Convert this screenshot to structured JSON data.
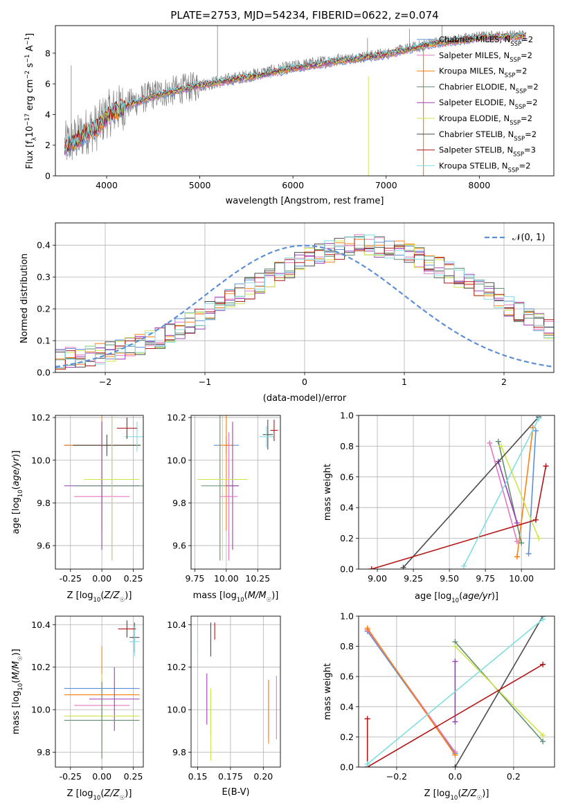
{
  "figure": {
    "title": "PLATE=2753, MJD=54234, FIBERID=0622, z=0.074"
  },
  "colors": {
    "Chabrier MILES": "#5b8fd6",
    "Salpeter MILES": "#e377c2",
    "Kroupa MILES": "#ff7f0e",
    "Chabrier ELODIE": "#5f8f6f",
    "Salpeter ELODIE": "#9a3fb5",
    "Kroupa ELODIE": "#cfe64a",
    "Chabrier STELIB": "#4a4a4a",
    "Salpeter STELIB": "#b21515",
    "Kroupa STELIB": "#80dde0",
    "data": "#808080",
    "grid": "#b0b0b0",
    "normal": "#5b8fd6"
  },
  "legend": [
    {
      "key": "Chabrier MILES",
      "label": "Chabrier MILES, N",
      "sub": "SSP",
      "suffix": "=2"
    },
    {
      "key": "Salpeter MILES",
      "label": "Salpeter MILES, N",
      "sub": "SSP",
      "suffix": "=2"
    },
    {
      "key": "Kroupa MILES",
      "label": "Kroupa MILES, N",
      "sub": "SSP",
      "suffix": "=2"
    },
    {
      "key": "Chabrier ELODIE",
      "label": "Chabrier ELODIE, N",
      "sub": "SSP",
      "suffix": "=2"
    },
    {
      "key": "Salpeter ELODIE",
      "label": "Salpeter ELODIE, N",
      "sub": "SSP",
      "suffix": "=2"
    },
    {
      "key": "Kroupa ELODIE",
      "label": "Kroupa ELODIE, N",
      "sub": "SSP",
      "suffix": "=2"
    },
    {
      "key": "Chabrier STELIB",
      "label": "Chabrier STELIB, N",
      "sub": "SSP",
      "suffix": "=2"
    },
    {
      "key": "Salpeter STELIB",
      "label": "Salpeter STELIB, N",
      "sub": "SSP",
      "suffix": "=3"
    },
    {
      "key": "Kroupa STELIB",
      "label": "Kroupa STELIB, N",
      "sub": "SSP",
      "suffix": "=2"
    }
  ],
  "chart_data": [
    {
      "type": "line",
      "panel": "spectrum",
      "xlabel": "wavelength [Angstrom, rest frame]",
      "ylabel": "Flux [f_λ 10^-17 erg cm^-2 s^-1 A^-1]",
      "xlim": [
        3450,
        8800
      ],
      "ylim": [
        0,
        9.8
      ],
      "xticks": [
        4000,
        5000,
        6000,
        7000,
        8000
      ],
      "yticks": [
        0,
        2,
        4,
        6,
        8
      ],
      "grid": false,
      "legend_position": "right",
      "data_continuum": {
        "x": [
          3550,
          3700,
          3800,
          3900,
          4000,
          4200,
          4500,
          5000,
          5500,
          6000,
          6500,
          7000,
          7500,
          8000,
          8500
        ],
        "y": [
          2.0,
          2.5,
          3.0,
          3.2,
          4.0,
          4.6,
          5.3,
          5.9,
          6.5,
          7.1,
          7.6,
          8.0,
          8.7,
          9.1,
          9.2
        ]
      },
      "model_mean": {
        "x": [
          3550,
          3700,
          3800,
          3900,
          4000,
          4200,
          4500,
          5000,
          5500,
          6000,
          6500,
          7000,
          7500,
          8000,
          8500
        ],
        "y": [
          1.9,
          2.4,
          2.9,
          3.1,
          3.9,
          4.5,
          5.2,
          5.9,
          6.4,
          7.0,
          7.5,
          7.9,
          8.6,
          9.0,
          9.1
        ]
      }
    },
    {
      "type": "histogram",
      "panel": "residuals",
      "xlabel": "(data-model)/error",
      "ylabel": "Normed distribution",
      "xlim": [
        -2.5,
        2.5
      ],
      "ylim": [
        0,
        0.47
      ],
      "xticks": [
        -2,
        -1,
        0,
        1,
        2
      ],
      "yticks": [
        0.0,
        0.1,
        0.2,
        0.3,
        0.4
      ],
      "grid": true,
      "legend": "𝒩(0, 1)",
      "legend_position": "top-right",
      "bin_width": 0.1,
      "envelope": [
        0.04,
        0.045,
        0.05,
        0.055,
        0.06,
        0.07,
        0.075,
        0.08,
        0.09,
        0.1,
        0.11,
        0.12,
        0.14,
        0.155,
        0.17,
        0.19,
        0.21,
        0.23,
        0.25,
        0.265,
        0.28,
        0.3,
        0.315,
        0.33,
        0.345,
        0.36,
        0.37,
        0.38,
        0.39,
        0.395,
        0.4,
        0.4,
        0.395,
        0.39,
        0.38,
        0.37,
        0.36,
        0.345,
        0.33,
        0.315,
        0.3,
        0.28,
        0.265,
        0.25,
        0.23,
        0.21,
        0.19,
        0.17,
        0.155,
        0.14
      ]
    },
    {
      "type": "scatter",
      "panel": "age-vs-Z",
      "xlabel": "Z [log10(Z/Z☉)]",
      "ylabel": "age [log10(age/yr)]",
      "xlim": [
        -0.37,
        0.33
      ],
      "ylim": [
        9.49,
        10.21
      ],
      "xticks": [
        -0.25,
        0.0,
        0.25
      ],
      "yticks": [
        9.6,
        9.8,
        10.0,
        10.2
      ],
      "grid": true,
      "points": [
        {
          "key": "Chabrier MILES",
          "x": 0.0,
          "y": 10.07,
          "xerr": 0.3,
          "yerr": 0.04
        },
        {
          "key": "Kroupa MILES",
          "x": 0.0,
          "y": 10.07,
          "xerr": 0.3,
          "yerr": 0.4
        },
        {
          "key": "Chabrier STELIB",
          "x": 0.04,
          "y": 10.07,
          "xerr": 0.27,
          "yerr": 0.05
        },
        {
          "key": "Salpeter MILES",
          "x": 0.0,
          "y": 9.83,
          "xerr": 0.22,
          "yerr": 0.04
        },
        {
          "key": "Salpeter ELODIE",
          "x": 0.0,
          "y": 9.88,
          "xerr": 0.3,
          "yerr": 0.3
        },
        {
          "key": "Chabrier ELODIE",
          "x": 0.08,
          "y": 9.88,
          "xerr": 0.3,
          "yerr": 0.35
        },
        {
          "key": "Kroupa ELODIE",
          "x": 0.08,
          "y": 9.91,
          "xerr": 0.22,
          "yerr": 0.38
        },
        {
          "key": "Kroupa STELIB",
          "x": 0.28,
          "y": 10.11,
          "xerr": 0.1,
          "yerr": 0.07
        },
        {
          "key": "Salpeter STELIB",
          "x": 0.2,
          "y": 10.15,
          "xerr": 0.08,
          "yerr": 0.05
        }
      ]
    },
    {
      "type": "scatter",
      "panel": "age-vs-mass",
      "xlabel": "mass [log10(M/M☉)]",
      "ylabel": "",
      "xlim": [
        9.72,
        10.43
      ],
      "ylim": [
        9.49,
        10.21
      ],
      "xticks": [
        9.75,
        10.0,
        10.25
      ],
      "yticks": [
        9.6,
        9.8,
        10.0,
        10.2
      ],
      "grid": true,
      "points": [
        {
          "key": "Chabrier MILES",
          "x": 10.0,
          "y": 10.07,
          "xerr": 0.1,
          "yerr": 0.04
        },
        {
          "key": "Kroupa MILES",
          "x": 10.0,
          "y": 10.07,
          "xerr": 0.05,
          "yerr": 0.4
        },
        {
          "key": "Chabrier ELODIE",
          "x": 9.95,
          "y": 9.88,
          "xerr": 0.15,
          "yerr": 0.35
        },
        {
          "key": "Salpeter ELODIE",
          "x": 10.05,
          "y": 9.88,
          "xerr": 0.05,
          "yerr": 0.3
        },
        {
          "key": "Salpeter MILES",
          "x": 10.02,
          "y": 9.83,
          "xerr": 0.07,
          "yerr": 0.3
        },
        {
          "key": "Kroupa ELODIE",
          "x": 9.97,
          "y": 9.91,
          "xerr": 0.2,
          "yerr": 0.38
        },
        {
          "key": "Chabrier STELIB",
          "x": 10.33,
          "y": 10.12,
          "xerr": 0.04,
          "yerr": 0.07
        },
        {
          "key": "Kroupa STELIB",
          "x": 10.32,
          "y": 10.11,
          "xerr": 0.06,
          "yerr": 0.05
        },
        {
          "key": "Salpeter STELIB",
          "x": 10.38,
          "y": 10.14,
          "xerr": 0.03,
          "yerr": 0.05
        }
      ]
    },
    {
      "type": "line",
      "panel": "mass-weight-vs-age",
      "xlabel": "age [log10(age/yr)]",
      "ylabel": "mass weight",
      "xlim": [
        8.87,
        10.23
      ],
      "ylim": [
        0,
        1
      ],
      "xticks": [
        9.0,
        9.25,
        9.5,
        9.75,
        10.0
      ],
      "yticks": [
        0.0,
        0.2,
        0.4,
        0.6,
        0.8,
        1.0
      ],
      "grid": true,
      "series": [
        {
          "key": "Chabrier MILES",
          "x": [
            10.05,
            10.1
          ],
          "y": [
            0.1,
            0.9
          ]
        },
        {
          "key": "Salpeter MILES",
          "x": [
            9.78,
            9.97
          ],
          "y": [
            0.82,
            0.18
          ]
        },
        {
          "key": "Kroupa MILES",
          "x": [
            9.97,
            10.08
          ],
          "y": [
            0.08,
            0.92
          ]
        },
        {
          "key": "Chabrier ELODIE",
          "x": [
            9.84,
            10.0
          ],
          "y": [
            0.83,
            0.17
          ]
        },
        {
          "key": "Salpeter ELODIE",
          "x": [
            9.84,
            9.97
          ],
          "y": [
            0.7,
            0.3
          ]
        },
        {
          "key": "Kroupa ELODIE",
          "x": [
            9.86,
            10.12
          ],
          "y": [
            0.8,
            0.2
          ]
        },
        {
          "key": "Chabrier STELIB",
          "x": [
            9.18,
            10.12
          ],
          "y": [
            0.01,
            0.99
          ]
        },
        {
          "key": "Salpeter STELIB",
          "x": [
            8.96,
            10.1,
            10.17
          ],
          "y": [
            0.0,
            0.32,
            0.67
          ]
        },
        {
          "key": "Kroupa STELIB",
          "x": [
            9.6,
            10.12
          ],
          "y": [
            0.02,
            0.98
          ]
        }
      ]
    },
    {
      "type": "scatter",
      "panel": "mass-vs-Z",
      "xlabel": "Z [log10(Z/Z☉)]",
      "ylabel": "mass [log10(M/M☉)]",
      "xlim": [
        -0.37,
        0.33
      ],
      "ylim": [
        9.73,
        10.44
      ],
      "xticks": [
        -0.25,
        0.0,
        0.25
      ],
      "yticks": [
        9.8,
        10.0,
        10.2,
        10.4
      ],
      "grid": true,
      "points": [
        {
          "key": "Chabrier MILES",
          "x": 0.0,
          "y": 10.1,
          "xerr": 0.3,
          "yerr": 0.05
        },
        {
          "key": "Kroupa MILES",
          "x": 0.0,
          "y": 10.07,
          "xerr": 0.3,
          "yerr": 0.23
        },
        {
          "key": "Salpeter MILES",
          "x": 0.0,
          "y": 10.02,
          "xerr": 0.22,
          "yerr": 0.05
        },
        {
          "key": "Salpeter ELODIE",
          "x": 0.1,
          "y": 10.05,
          "xerr": 0.2,
          "yerr": 0.15
        },
        {
          "key": "Kroupa ELODIE",
          "x": 0.0,
          "y": 9.97,
          "xerr": 0.3,
          "yerr": 0.2
        },
        {
          "key": "Chabrier ELODIE",
          "x": 0.0,
          "y": 9.95,
          "xerr": 0.3,
          "yerr": 0.18
        },
        {
          "key": "Chabrier STELIB",
          "x": 0.26,
          "y": 10.34,
          "xerr": 0.04,
          "yerr": 0.07
        },
        {
          "key": "Kroupa STELIB",
          "x": 0.26,
          "y": 10.32,
          "xerr": 0.04,
          "yerr": 0.07
        },
        {
          "key": "Salpeter STELIB",
          "x": 0.2,
          "y": 10.38,
          "xerr": 0.07,
          "yerr": 0.04
        }
      ]
    },
    {
      "type": "scatter",
      "panel": "mass-vs-EBV",
      "xlabel": "E(B-V)",
      "ylabel": "",
      "xlim": [
        0.145,
        0.213
      ],
      "ylim": [
        9.73,
        10.44
      ],
      "xticks": [
        0.15,
        0.175,
        0.2
      ],
      "yticks": [
        9.8,
        10.0,
        10.2,
        10.4
      ],
      "grid": true,
      "points": [
        {
          "key": "Kroupa STELIB",
          "x": 0.15,
          "y": 10.32,
          "xerr": 0.0,
          "yerr": 0.07
        },
        {
          "key": "Salpeter ELODIE",
          "x": 0.157,
          "y": 10.05,
          "xerr": 0.0,
          "yerr": 0.12
        },
        {
          "key": "Chabrier ELODIE",
          "x": 0.16,
          "y": 9.98,
          "xerr": 0.0,
          "yerr": 0.1
        },
        {
          "key": "Kroupa ELODIE",
          "x": 0.16,
          "y": 9.93,
          "xerr": 0.0,
          "yerr": 0.17
        },
        {
          "key": "Chabrier STELIB",
          "x": 0.16,
          "y": 10.33,
          "xerr": 0.0,
          "yerr": 0.08
        },
        {
          "key": "Salpeter STELIB",
          "x": 0.163,
          "y": 10.37,
          "xerr": 0.0,
          "yerr": 0.04
        },
        {
          "key": "Chabrier MILES",
          "x": 0.204,
          "y": 10.0,
          "xerr": 0.0,
          "yerr": 0.14
        },
        {
          "key": "Kroupa MILES",
          "x": 0.204,
          "y": 9.99,
          "xerr": 0.0,
          "yerr": 0.15
        },
        {
          "key": "Salpeter MILES",
          "x": 0.21,
          "y": 10.01,
          "xerr": 0.0,
          "yerr": 0.15
        }
      ]
    },
    {
      "type": "line",
      "panel": "mass-weight-vs-Z",
      "xlabel": "Z [log10(Z/Z☉)]",
      "ylabel": "mass weight",
      "xlim": [
        -0.33,
        0.34
      ],
      "ylim": [
        0,
        1
      ],
      "xticks": [
        -0.2,
        0.0,
        0.2
      ],
      "yticks": [
        0.0,
        0.2,
        0.4,
        0.6,
        0.8,
        1.0
      ],
      "grid": true,
      "series": [
        {
          "key": "Chabrier MILES",
          "x": [
            -0.3,
            0.0
          ],
          "y": [
            0.9,
            0.09
          ]
        },
        {
          "key": "Salpeter MILES",
          "x": [
            -0.3,
            0.0
          ],
          "y": [
            0.91,
            0.1
          ]
        },
        {
          "key": "Kroupa MILES",
          "x": [
            -0.3,
            0.0
          ],
          "y": [
            0.92,
            0.08
          ]
        },
        {
          "key": "Chabrier ELODIE",
          "x": [
            0.0,
            0.3
          ],
          "y": [
            0.83,
            0.17
          ]
        },
        {
          "key": "Salpeter ELODIE",
          "x": [
            0.0,
            0.0
          ],
          "y": [
            0.7,
            0.3
          ]
        },
        {
          "key": "Kroupa ELODIE",
          "x": [
            0.0,
            0.3
          ],
          "y": [
            0.8,
            0.21
          ]
        },
        {
          "key": "Chabrier STELIB",
          "x": [
            0.0,
            0.3
          ],
          "y": [
            0.0,
            1.0
          ]
        },
        {
          "key": "Salpeter STELIB",
          "x": [
            -0.3,
            -0.3,
            0.3
          ],
          "y": [
            0.32,
            0.0,
            0.68
          ]
        },
        {
          "key": "Kroupa STELIB",
          "x": [
            -0.3,
            0.3
          ],
          "y": [
            0.02,
            0.98
          ]
        }
      ]
    }
  ]
}
